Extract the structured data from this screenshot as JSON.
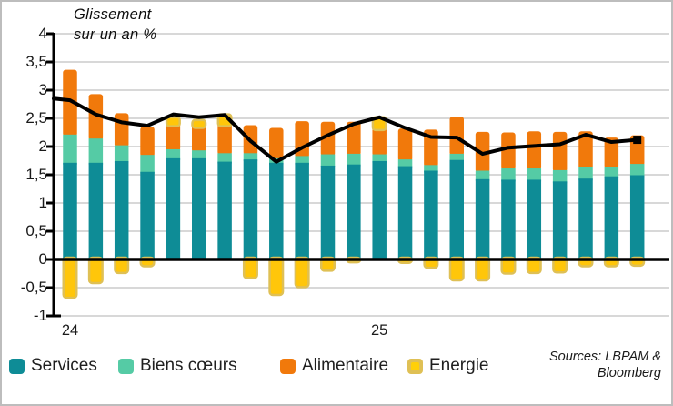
{
  "title": {
    "line1": "Glissement",
    "line2": "sur un an %"
  },
  "sources": {
    "line1": "Sources: LBPAM &",
    "line2": "Bloomberg"
  },
  "y_axis": {
    "ticks": [
      {
        "label": "4",
        "value": 4
      },
      {
        "label": "3,5",
        "value": 3.5
      },
      {
        "label": "3",
        "value": 3
      },
      {
        "label": "2,5",
        "value": 2.5
      },
      {
        "label": "2",
        "value": 2
      },
      {
        "label": "1,5",
        "value": 1.5
      },
      {
        "label": "1",
        "value": 1
      },
      {
        "label": "0,5",
        "value": 0.5
      },
      {
        "label": "0",
        "value": 0
      },
      {
        "label": "-0,5",
        "value": -0.5
      },
      {
        "label": "-1",
        "value": -1
      }
    ]
  },
  "x_axis": {
    "ticks": [
      {
        "label": "24",
        "bar_index": 0
      },
      {
        "label": "25",
        "bar_index": 12
      }
    ]
  },
  "legend": {
    "items": [
      {
        "label": "Services",
        "color": "#0E8C96"
      },
      {
        "label": "Biens cœurs",
        "color": "#55CBA5"
      },
      {
        "label": "Alimentaire",
        "color": "#F1790B"
      },
      {
        "label": "Energie",
        "color": "#DFC055",
        "inner_color": "#FFD008"
      }
    ]
  },
  "colors": {
    "services": "#0E8C96",
    "core_goods": "#55CBA5",
    "food": "#F1790B",
    "energy_fill": "#FFC60A",
    "energy_border": "#DFC055",
    "total_line": "#000000",
    "grid": "#D8D8D8",
    "frame": "#BDBDBD"
  },
  "chart_data": {
    "type": "bar",
    "subtype": "stacked-bars-with-total-line",
    "title": "Glissement sur un an %",
    "ylim": [
      -1,
      4
    ],
    "grid": true,
    "n_bars": 23,
    "x_year_labels": [
      "24",
      "25"
    ],
    "series": [
      {
        "name": "Services",
        "color": "#0E8C96",
        "values": [
          1.68,
          1.68,
          1.71,
          1.52,
          1.76,
          1.76,
          1.7,
          1.74,
          1.68,
          1.68,
          1.63,
          1.65,
          1.71,
          1.62,
          1.54,
          1.73,
          1.39,
          1.38,
          1.38,
          1.35,
          1.4,
          1.44,
          1.46
        ]
      },
      {
        "name": "Biens cœurs",
        "color": "#55CBA5",
        "values": [
          0.5,
          0.43,
          0.28,
          0.3,
          0.16,
          0.14,
          0.15,
          0.11,
          0.08,
          0.12,
          0.2,
          0.19,
          0.12,
          0.12,
          0.1,
          0.11,
          0.15,
          0.2,
          0.2,
          0.2,
          0.2,
          0.17,
          0.2
        ]
      },
      {
        "name": "Alimentaire",
        "color": "#F1790B",
        "values": [
          1.18,
          0.82,
          0.6,
          0.53,
          0.49,
          0.48,
          0.56,
          0.53,
          0.57,
          0.65,
          0.61,
          0.6,
          0.51,
          0.58,
          0.66,
          0.69,
          0.72,
          0.67,
          0.69,
          0.71,
          0.67,
          0.55,
          0.54
        ]
      },
      {
        "name": "Energie",
        "color": "#FFC60A",
        "border_color": "#DFC055",
        "values": [
          -0.68,
          -0.42,
          -0.24,
          -0.12,
          0.11,
          0.09,
          0.16,
          -0.33,
          -0.63,
          -0.49,
          -0.2,
          -0.05,
          0.18,
          -0.06,
          -0.15,
          -0.37,
          -0.37,
          -0.25,
          -0.24,
          -0.23,
          -0.12,
          -0.12,
          -0.11
        ]
      }
    ],
    "line_series": {
      "name": "Total",
      "color": "#000000",
      "left_edge_value": 2.85,
      "values": [
        2.82,
        2.57,
        2.43,
        2.37,
        2.57,
        2.52,
        2.56,
        2.1,
        1.73,
        1.98,
        2.2,
        2.4,
        2.52,
        2.33,
        2.17,
        2.16,
        1.87,
        1.98,
        2.01,
        2.04,
        2.21,
        2.08,
        2.12
      ]
    }
  }
}
